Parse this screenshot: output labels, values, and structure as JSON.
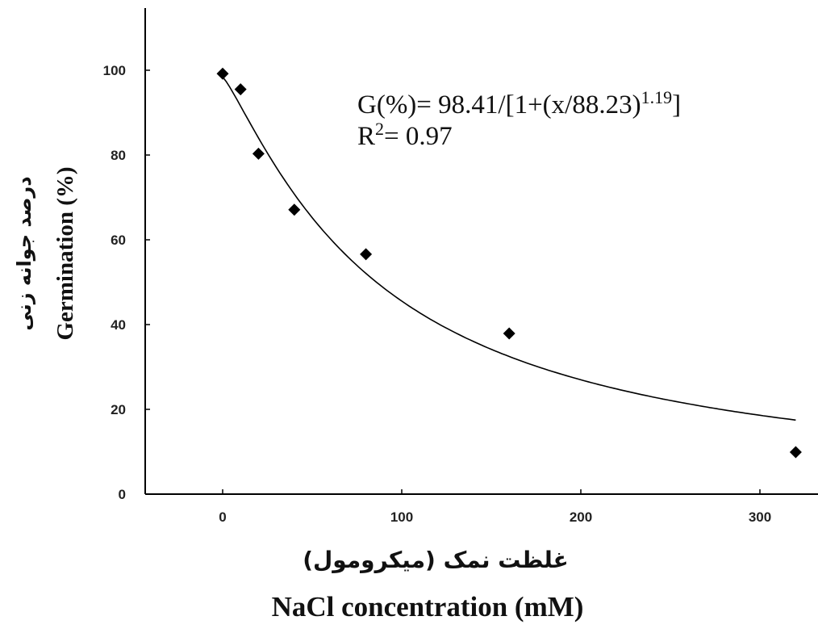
{
  "chart_data": {
    "type": "scatter",
    "xlabel": "NaCl concentration (mM)",
    "xlabel_fa": "غلظت نمک (میکرومول)",
    "ylabel": "Germination (%)",
    "ylabel_fa": "درصد جوانه زنی",
    "xlim": [
      -45,
      330
    ],
    "ylim": [
      0,
      115
    ],
    "x_ticks": [
      0,
      100,
      200,
      300
    ],
    "y_ticks": [
      0,
      20,
      40,
      60,
      80,
      100
    ],
    "grid": false,
    "series": [
      {
        "marker": "diamond",
        "color": "#000000",
        "points": [
          {
            "x": 0,
            "y": 99.2
          },
          {
            "x": 10,
            "y": 95.5
          },
          {
            "x": 20,
            "y": 80.3
          },
          {
            "x": 40,
            "y": 67.1
          },
          {
            "x": 80,
            "y": 56.6
          },
          {
            "x": 160,
            "y": 37.9
          },
          {
            "x": 320,
            "y": 9.9
          }
        ]
      }
    ],
    "fit": {
      "equation_lines": [
        "G(%)= 98.41/[1+(x/88.23)",
        "1.19",
        "]",
        "R",
        "2",
        "= 0.97"
      ],
      "a": 98.41,
      "x50": 88.23,
      "b": 1.19,
      "x_range": [
        0,
        320
      ],
      "color": "#000000"
    }
  }
}
